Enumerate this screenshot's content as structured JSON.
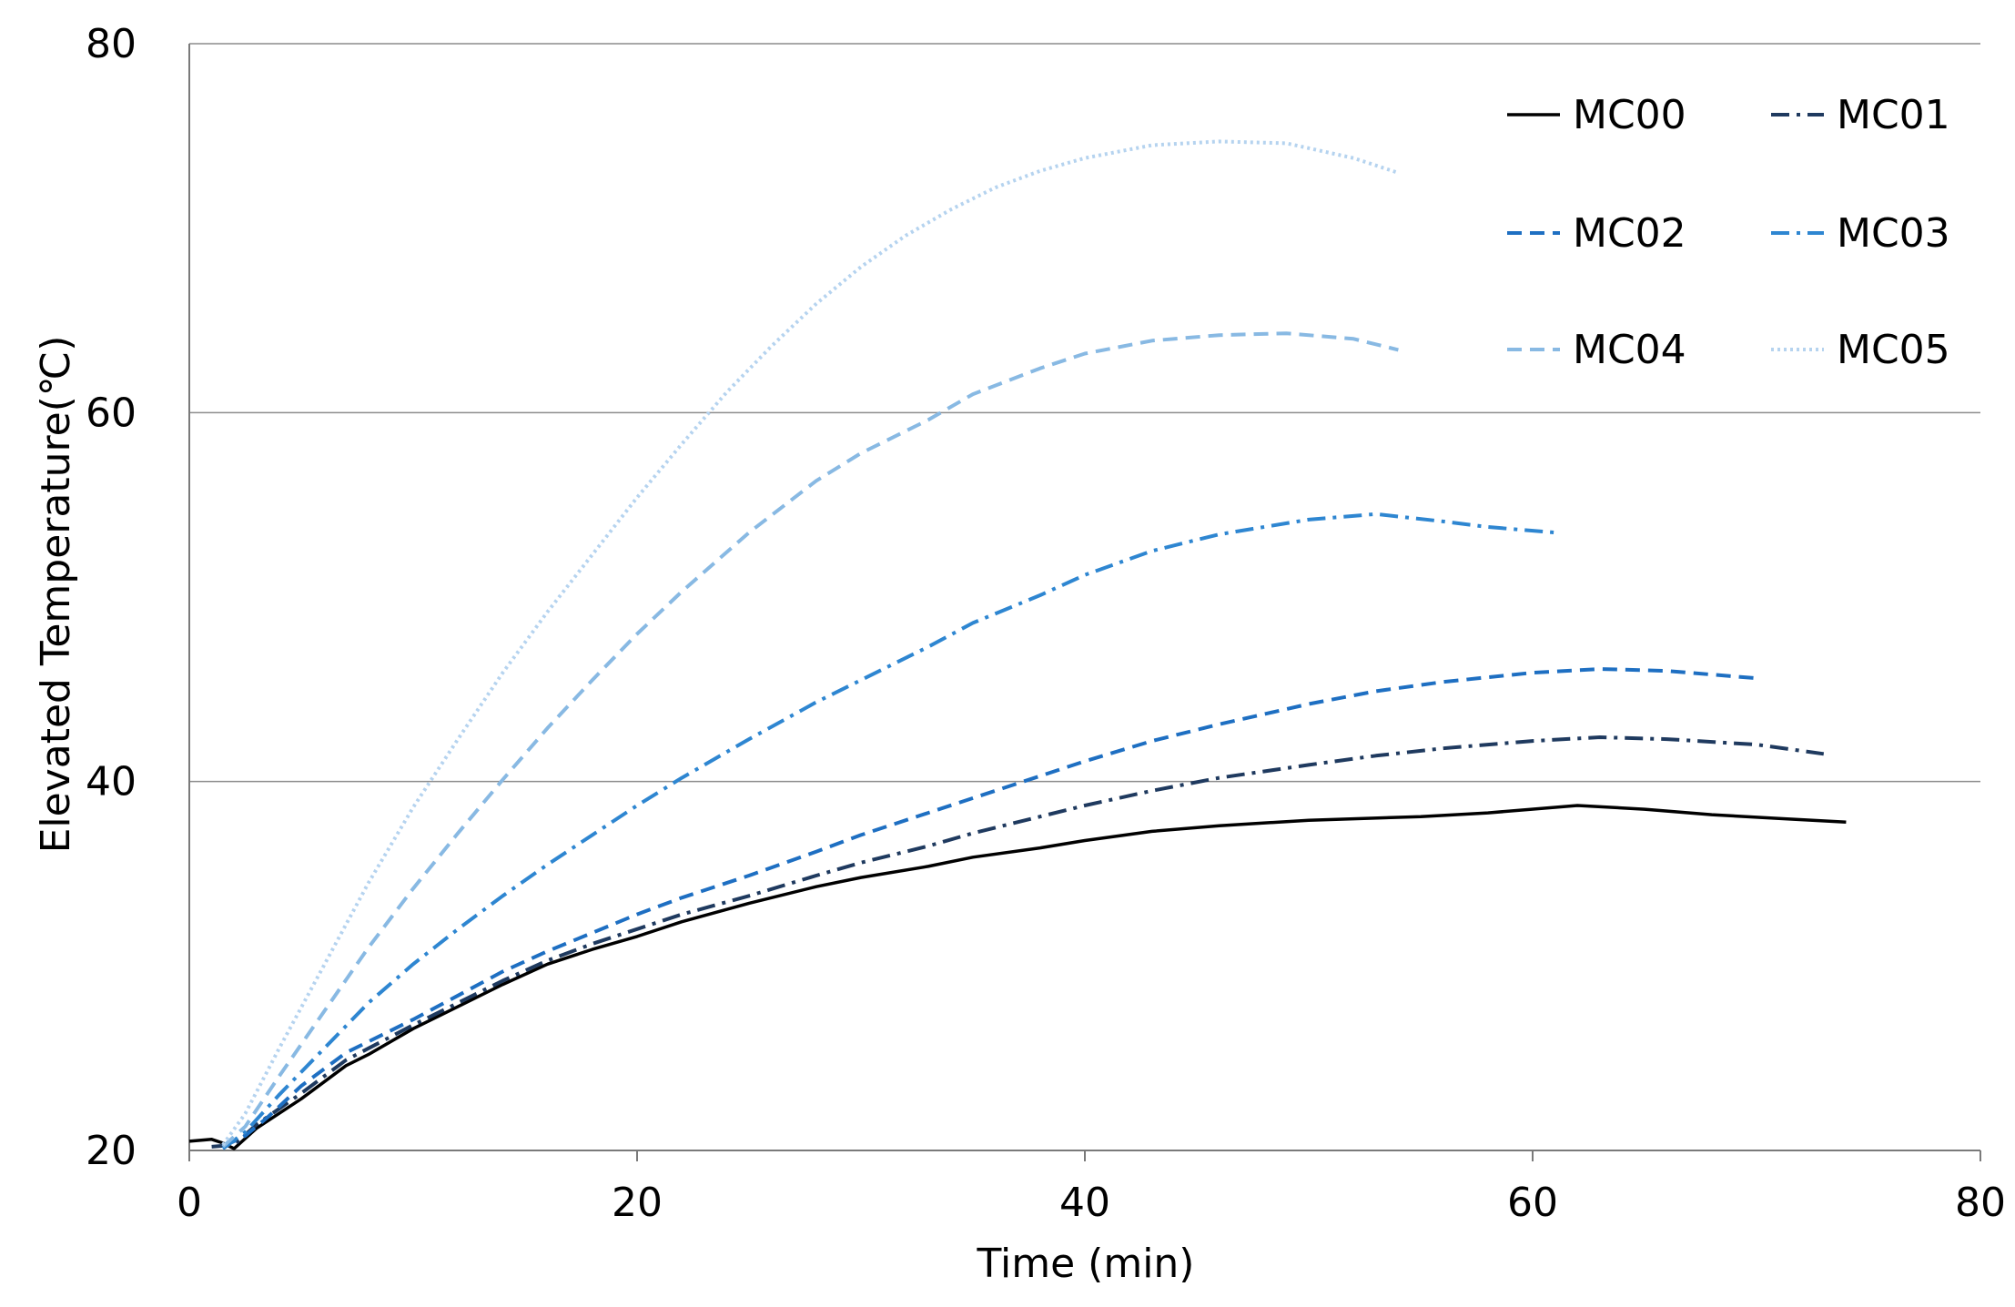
{
  "chart_data": {
    "type": "line",
    "title": "",
    "xlabel": "Time (min)",
    "ylabel": "Elevated Temperature(℃)",
    "xlim": [
      0,
      80
    ],
    "ylim": [
      20,
      80
    ],
    "x_ticks": [
      "0",
      "20",
      "40",
      "60",
      "80"
    ],
    "y_ticks": [
      "20",
      "40",
      "60",
      "80"
    ],
    "grid": "horizontal",
    "legend_position": "top-right",
    "series": [
      {
        "name": "MC00",
        "color": "#000000",
        "dash": "solid",
        "points": [
          [
            0,
            20.5
          ],
          [
            1,
            20.6
          ],
          [
            1.5,
            20.4
          ],
          [
            2,
            20.1
          ],
          [
            3,
            21.2
          ],
          [
            5,
            22.8
          ],
          [
            7,
            24.6
          ],
          [
            8,
            25.2
          ],
          [
            10,
            26.6
          ],
          [
            12,
            27.8
          ],
          [
            14,
            29
          ],
          [
            16,
            30.1
          ],
          [
            18,
            30.9
          ],
          [
            20,
            31.6
          ],
          [
            22,
            32.4
          ],
          [
            25,
            33.4
          ],
          [
            28,
            34.3
          ],
          [
            30,
            34.8
          ],
          [
            33,
            35.4
          ],
          [
            35,
            35.9
          ],
          [
            38,
            36.4
          ],
          [
            40,
            36.8
          ],
          [
            43,
            37.3
          ],
          [
            46,
            37.6
          ],
          [
            50,
            37.9
          ],
          [
            55,
            38.1
          ],
          [
            58,
            38.3
          ],
          [
            62,
            38.7
          ],
          [
            65,
            38.5
          ],
          [
            68,
            38.2
          ],
          [
            71,
            38
          ],
          [
            74,
            37.8
          ]
        ]
      },
      {
        "name": "MC01",
        "color": "#1f3a5f",
        "dash": "dashdot",
        "points": [
          [
            1,
            20.2
          ],
          [
            2,
            20.3
          ],
          [
            3,
            21.4
          ],
          [
            5,
            23.1
          ],
          [
            7,
            24.9
          ],
          [
            10,
            26.8
          ],
          [
            12,
            28
          ],
          [
            14,
            29.2
          ],
          [
            16,
            30.3
          ],
          [
            18,
            31.2
          ],
          [
            20,
            32
          ],
          [
            22,
            32.8
          ],
          [
            25,
            33.8
          ],
          [
            28,
            34.9
          ],
          [
            30,
            35.6
          ],
          [
            33,
            36.5
          ],
          [
            35,
            37.2
          ],
          [
            38,
            38.1
          ],
          [
            40,
            38.7
          ],
          [
            43,
            39.5
          ],
          [
            46,
            40.2
          ],
          [
            50,
            40.9
          ],
          [
            53,
            41.4
          ],
          [
            56,
            41.8
          ],
          [
            60,
            42.2
          ],
          [
            63,
            42.4
          ],
          [
            66,
            42.3
          ],
          [
            70,
            42
          ],
          [
            73,
            41.5
          ]
        ]
      },
      {
        "name": "MC02",
        "color": "#1e6fc2",
        "dash": "dashed",
        "points": [
          [
            1.5,
            20.2
          ],
          [
            2.5,
            20.8
          ],
          [
            3.5,
            21.8
          ],
          [
            5,
            23.5
          ],
          [
            7,
            25.3
          ],
          [
            10,
            27.1
          ],
          [
            12,
            28.4
          ],
          [
            14,
            29.7
          ],
          [
            16,
            30.8
          ],
          [
            18,
            31.8
          ],
          [
            20,
            32.8
          ],
          [
            22,
            33.7
          ],
          [
            25,
            34.9
          ],
          [
            28,
            36.2
          ],
          [
            30,
            37.1
          ],
          [
            33,
            38.3
          ],
          [
            35,
            39.1
          ],
          [
            38,
            40.3
          ],
          [
            40,
            41.1
          ],
          [
            43,
            42.2
          ],
          [
            46,
            43.1
          ],
          [
            50,
            44.2
          ],
          [
            53,
            44.9
          ],
          [
            56,
            45.4
          ],
          [
            60,
            45.9
          ],
          [
            63,
            46.1
          ],
          [
            66,
            46
          ],
          [
            70,
            45.6
          ]
        ]
      },
      {
        "name": "MC03",
        "color": "#2e86d1",
        "dash": "dashdot",
        "points": [
          [
            1.5,
            20.1
          ],
          [
            2.5,
            21
          ],
          [
            4,
            23
          ],
          [
            6,
            25.5
          ],
          [
            8,
            28
          ],
          [
            10,
            30.1
          ],
          [
            12,
            32
          ],
          [
            14,
            33.8
          ],
          [
            16,
            35.5
          ],
          [
            18,
            37.1
          ],
          [
            20,
            38.7
          ],
          [
            22,
            40.2
          ],
          [
            25,
            42.3
          ],
          [
            28,
            44.3
          ],
          [
            30,
            45.5
          ],
          [
            33,
            47.3
          ],
          [
            35,
            48.6
          ],
          [
            38,
            50.1
          ],
          [
            40,
            51.2
          ],
          [
            43,
            52.5
          ],
          [
            46,
            53.4
          ],
          [
            50,
            54.2
          ],
          [
            53,
            54.5
          ],
          [
            56,
            54.1
          ],
          [
            58,
            53.8
          ],
          [
            61,
            53.5
          ]
        ]
      },
      {
        "name": "MC04",
        "color": "#88b9e3",
        "dash": "dashed",
        "points": [
          [
            1.5,
            20.2
          ],
          [
            2.5,
            21.3
          ],
          [
            4,
            24
          ],
          [
            6,
            27.5
          ],
          [
            8,
            31
          ],
          [
            10,
            34.2
          ],
          [
            12,
            37.2
          ],
          [
            14,
            40.1
          ],
          [
            16,
            42.9
          ],
          [
            18,
            45.5
          ],
          [
            20,
            48
          ],
          [
            22,
            50.3
          ],
          [
            25,
            53.5
          ],
          [
            28,
            56.3
          ],
          [
            30,
            57.8
          ],
          [
            33,
            59.6
          ],
          [
            35,
            61
          ],
          [
            38,
            62.4
          ],
          [
            40,
            63.2
          ],
          [
            43,
            63.9
          ],
          [
            46,
            64.2
          ],
          [
            49,
            64.3
          ],
          [
            52,
            64
          ],
          [
            54,
            63.4
          ]
        ]
      },
      {
        "name": "MC05",
        "color": "#b5d3ef",
        "dash": "dotted",
        "points": [
          [
            1.5,
            20.3
          ],
          [
            2.5,
            22
          ],
          [
            4,
            25.5
          ],
          [
            6,
            30
          ],
          [
            8,
            34.5
          ],
          [
            10,
            38.6
          ],
          [
            12,
            42.3
          ],
          [
            14,
            45.9
          ],
          [
            16,
            49.2
          ],
          [
            18,
            52.3
          ],
          [
            20,
            55.4
          ],
          [
            22,
            58.3
          ],
          [
            24,
            61.1
          ],
          [
            26,
            63.6
          ],
          [
            28,
            65.9
          ],
          [
            30,
            67.9
          ],
          [
            32,
            69.6
          ],
          [
            34,
            71
          ],
          [
            36,
            72.2
          ],
          [
            38,
            73.1
          ],
          [
            40,
            73.8
          ],
          [
            43,
            74.5
          ],
          [
            46,
            74.7
          ],
          [
            49,
            74.6
          ],
          [
            52,
            73.8
          ],
          [
            54,
            73
          ]
        ]
      }
    ]
  }
}
